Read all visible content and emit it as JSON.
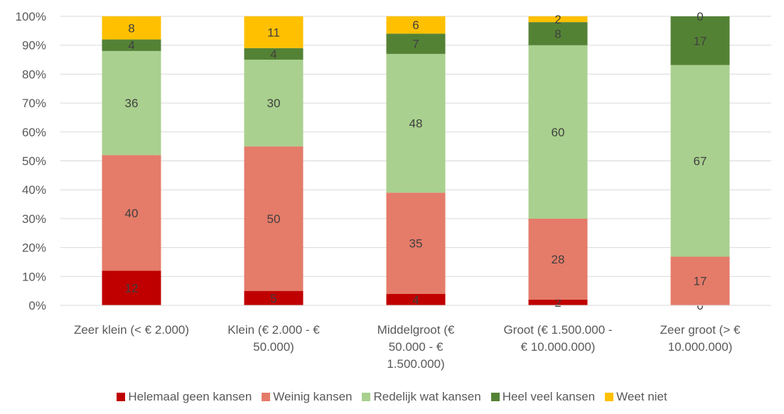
{
  "chart_data": {
    "type": "bar",
    "stacked": "percent",
    "categories": [
      [
        "Zeer klein (< € 2.000)"
      ],
      [
        "Klein (€ 2.000 - €",
        "50.000)"
      ],
      [
        "Middelgroot (€",
        "50.000 - €",
        "1.500.000)"
      ],
      [
        "Groot (€ 1.500.000 -",
        "€ 10.000.000)"
      ],
      [
        "Zeer groot (> €",
        "10.000.000)"
      ]
    ],
    "series": [
      {
        "name": "Helemaal geen kansen",
        "color": "#C00000",
        "values": [
          12,
          5,
          4,
          2,
          0
        ]
      },
      {
        "name": "Weinig kansen",
        "color": "#E57B69",
        "values": [
          40,
          50,
          35,
          28,
          17
        ]
      },
      {
        "name": "Redelijk wat kansen",
        "color": "#A9D08E",
        "values": [
          36,
          30,
          48,
          60,
          67
        ]
      },
      {
        "name": "Heel veel kansen",
        "color": "#548235",
        "values": [
          4,
          4,
          7,
          8,
          17
        ]
      },
      {
        "name": "Weet niet",
        "color": "#FFC000",
        "values": [
          8,
          11,
          6,
          2,
          0
        ]
      }
    ],
    "yticks": [
      "0%",
      "10%",
      "20%",
      "30%",
      "40%",
      "50%",
      "60%",
      "70%",
      "80%",
      "90%",
      "100%"
    ],
    "ylim": [
      0,
      100
    ],
    "grid": true,
    "legend_position": "bottom"
  }
}
